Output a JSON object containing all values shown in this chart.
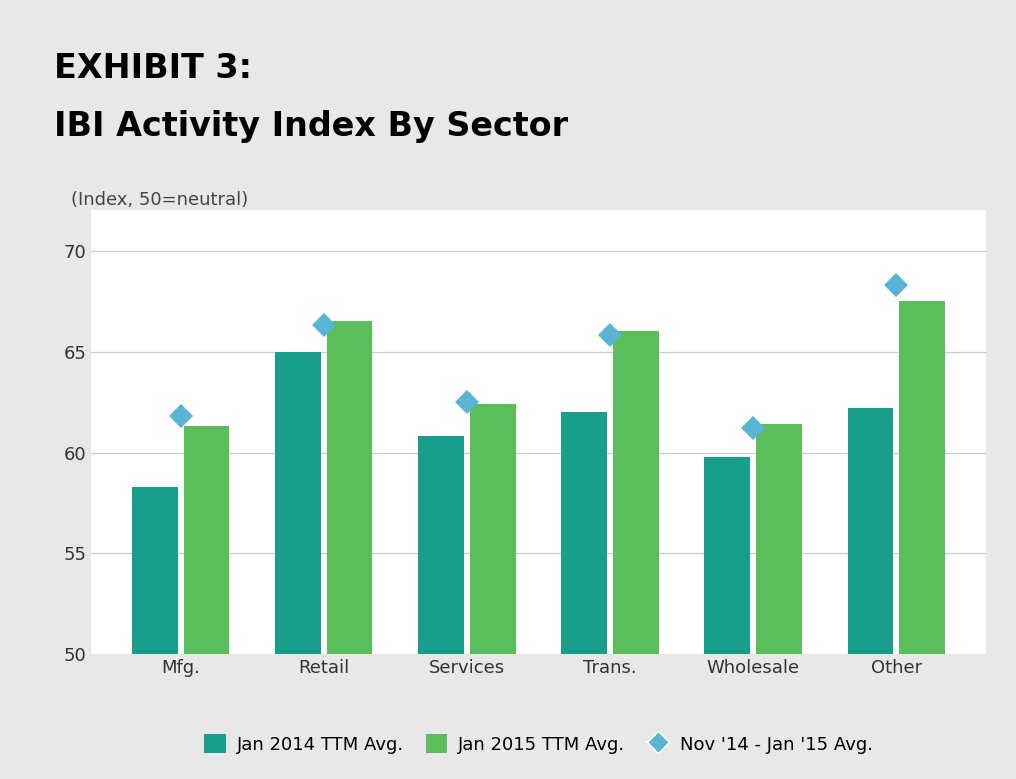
{
  "title_line1": "EXHIBIT 3:",
  "title_line2": "IBI Activity Index By Sector",
  "subtitle": "(Index, 50=neutral)",
  "categories": [
    "Mfg.",
    "Retail",
    "Services",
    "Trans.",
    "Wholesale",
    "Other"
  ],
  "jan2014_values": [
    58.3,
    65.0,
    60.8,
    62.0,
    59.8,
    62.2
  ],
  "jan2015_values": [
    61.3,
    66.5,
    62.4,
    66.0,
    61.4,
    67.5
  ],
  "nov14_jan15_values": [
    61.8,
    66.3,
    62.5,
    65.8,
    61.2,
    68.3
  ],
  "bar_color_2014": "#1a9e8c",
  "bar_color_2015": "#5abf5a",
  "diamond_color": "#5ab4d6",
  "ylim": [
    50,
    72
  ],
  "yticks": [
    50,
    55,
    60,
    65,
    70
  ],
  "header_bg_color": "#c0c0c0",
  "fig_bg_color": "#e8e8e8",
  "plot_bg_color": "#ffffff",
  "grid_color": "#cccccc",
  "legend_labels": [
    "Jan 2014 TTM Avg.",
    "Jan 2015 TTM Avg.",
    "Nov '14 - Jan '15 Avg."
  ],
  "title_fontsize": 24,
  "subtitle_fontsize": 13,
  "tick_fontsize": 13,
  "legend_fontsize": 13,
  "bar_width": 0.32,
  "bar_gap": 0.04
}
